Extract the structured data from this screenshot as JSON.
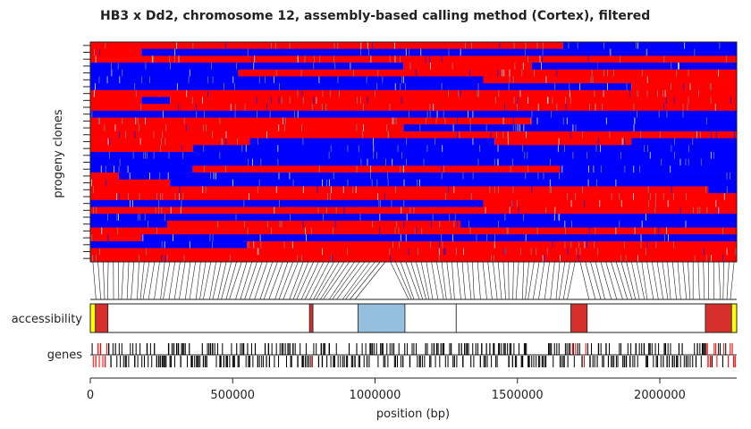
{
  "chart_data": {
    "type": "heatmap",
    "title": "HB3 x Dd2, chromosome 12, assembly-based calling method (Cortex), filtered",
    "ylabel": "progeny clones",
    "xlabel": "position (bp)",
    "xlim": [
      0,
      2270000
    ],
    "xticks": [
      0,
      500000,
      1000000,
      1500000,
      2000000
    ],
    "xtick_labels": [
      "0",
      "500000",
      "1000000",
      "1500000",
      "2000000"
    ],
    "track_labels": {
      "accessibility": "accessibility",
      "genes": "genes"
    },
    "colors": {
      "parent_a": "#ff0000",
      "parent_b": "#0000ff",
      "missing": "#888888",
      "core": "#ffffff",
      "subtelomeric_hypervariable": "#d7302c",
      "internal_hypervariable": "#94bfdd",
      "telomere": "#ffff00",
      "gene": "#000000",
      "gene_highlight": "#ff0000"
    },
    "accessibility_regions": [
      {
        "start": 0,
        "end": 18000,
        "class": "telomere"
      },
      {
        "start": 18000,
        "end": 62000,
        "class": "subtelomeric_hypervariable"
      },
      {
        "start": 62000,
        "end": 770000,
        "class": "core"
      },
      {
        "start": 770000,
        "end": 782000,
        "class": "subtelomeric_hypervariable"
      },
      {
        "start": 782000,
        "end": 940000,
        "class": "core"
      },
      {
        "start": 940000,
        "end": 1105000,
        "class": "internal_hypervariable"
      },
      {
        "start": 1105000,
        "end": 1285000,
        "class": "core"
      },
      {
        "start": 1285000,
        "end": 1688000,
        "class": "core"
      },
      {
        "start": 1688000,
        "end": 1745000,
        "class": "subtelomeric_hypervariable"
      },
      {
        "start": 1745000,
        "end": 2160000,
        "class": "core"
      },
      {
        "start": 2160000,
        "end": 2252000,
        "class": "subtelomeric_hypervariable"
      },
      {
        "start": 2252000,
        "end": 2270000,
        "class": "telomere"
      }
    ],
    "variant_gaps": [
      [
        1070000,
        1095000
      ],
      [
        1715000,
        1740000
      ]
    ],
    "progeny": [
      {
        "segments": [
          {
            "start": 0,
            "end": 1660000,
            "parent": "parent_a"
          },
          {
            "start": 1660000,
            "end": 2270000,
            "parent": "parent_b"
          }
        ]
      },
      {
        "segments": [
          {
            "start": 0,
            "end": 180000,
            "parent": "parent_a"
          },
          {
            "start": 180000,
            "end": 2270000,
            "parent": "parent_b"
          }
        ]
      },
      {
        "segments": [
          {
            "start": 0,
            "end": 2270000,
            "parent": "parent_a"
          }
        ]
      },
      {
        "segments": [
          {
            "start": 0,
            "end": 1100000,
            "parent": "parent_b"
          },
          {
            "start": 1100000,
            "end": 1550000,
            "parent": "parent_a"
          },
          {
            "start": 1550000,
            "end": 2270000,
            "parent": "parent_b"
          }
        ]
      },
      {
        "segments": [
          {
            "start": 0,
            "end": 520000,
            "parent": "parent_b"
          },
          {
            "start": 520000,
            "end": 2270000,
            "parent": "parent_a"
          }
        ]
      },
      {
        "segments": [
          {
            "start": 0,
            "end": 1380000,
            "parent": "parent_b"
          },
          {
            "start": 1380000,
            "end": 2270000,
            "parent": "parent_a"
          }
        ]
      },
      {
        "segments": [
          {
            "start": 0,
            "end": 1900000,
            "parent": "parent_b"
          },
          {
            "start": 1900000,
            "end": 2270000,
            "parent": "parent_a"
          }
        ]
      },
      {
        "segments": [
          {
            "start": 0,
            "end": 2270000,
            "parent": "parent_a"
          }
        ]
      },
      {
        "segments": [
          {
            "start": 0,
            "end": 180000,
            "parent": "parent_a"
          },
          {
            "start": 180000,
            "end": 280000,
            "parent": "parent_b"
          },
          {
            "start": 280000,
            "end": 2270000,
            "parent": "parent_a"
          }
        ]
      },
      {
        "segments": [
          {
            "start": 0,
            "end": 2270000,
            "parent": "parent_a"
          }
        ]
      },
      {
        "segments": [
          {
            "start": 0,
            "end": 2270000,
            "parent": "parent_b"
          }
        ]
      },
      {
        "segments": [
          {
            "start": 0,
            "end": 1550000,
            "parent": "parent_a"
          },
          {
            "start": 1550000,
            "end": 2270000,
            "parent": "parent_b"
          }
        ]
      },
      {
        "segments": [
          {
            "start": 0,
            "end": 1100000,
            "parent": "parent_a"
          },
          {
            "start": 1100000,
            "end": 2270000,
            "parent": "parent_b"
          }
        ]
      },
      {
        "segments": [
          {
            "start": 0,
            "end": 2270000,
            "parent": "parent_a"
          }
        ]
      },
      {
        "segments": [
          {
            "start": 0,
            "end": 560000,
            "parent": "parent_a"
          },
          {
            "start": 560000,
            "end": 1420000,
            "parent": "parent_b"
          },
          {
            "start": 1420000,
            "end": 1900000,
            "parent": "parent_a"
          },
          {
            "start": 1900000,
            "end": 2270000,
            "parent": "parent_b"
          }
        ]
      },
      {
        "segments": [
          {
            "start": 0,
            "end": 360000,
            "parent": "parent_a"
          },
          {
            "start": 360000,
            "end": 2270000,
            "parent": "parent_b"
          }
        ]
      },
      {
        "segments": [
          {
            "start": 0,
            "end": 2270000,
            "parent": "parent_b"
          }
        ]
      },
      {
        "segments": [
          {
            "start": 0,
            "end": 2270000,
            "parent": "parent_b"
          }
        ]
      },
      {
        "segments": [
          {
            "start": 0,
            "end": 360000,
            "parent": "parent_b"
          },
          {
            "start": 360000,
            "end": 1650000,
            "parent": "parent_a"
          },
          {
            "start": 1650000,
            "end": 2270000,
            "parent": "parent_b"
          }
        ]
      },
      {
        "segments": [
          {
            "start": 0,
            "end": 100000,
            "parent": "parent_a"
          },
          {
            "start": 100000,
            "end": 2270000,
            "parent": "parent_b"
          }
        ]
      },
      {
        "segments": [
          {
            "start": 0,
            "end": 280000,
            "parent": "parent_a"
          },
          {
            "start": 280000,
            "end": 2270000,
            "parent": "parent_b"
          }
        ]
      },
      {
        "segments": [
          {
            "start": 0,
            "end": 2170000,
            "parent": "parent_a"
          },
          {
            "start": 2170000,
            "end": 2270000,
            "parent": "parent_b"
          }
        ]
      },
      {
        "segments": [
          {
            "start": 0,
            "end": 2270000,
            "parent": "parent_a"
          }
        ]
      },
      {
        "segments": [
          {
            "start": 0,
            "end": 1380000,
            "parent": "parent_b"
          },
          {
            "start": 1380000,
            "end": 2270000,
            "parent": "parent_a"
          }
        ]
      },
      {
        "segments": [
          {
            "start": 0,
            "end": 2270000,
            "parent": "parent_a"
          }
        ]
      },
      {
        "segments": [
          {
            "start": 0,
            "end": 2270000,
            "parent": "parent_b"
          }
        ]
      },
      {
        "segments": [
          {
            "start": 0,
            "end": 270000,
            "parent": "parent_b"
          },
          {
            "start": 270000,
            "end": 1300000,
            "parent": "parent_a"
          },
          {
            "start": 1300000,
            "end": 2270000,
            "parent": "parent_b"
          }
        ]
      },
      {
        "segments": [
          {
            "start": 0,
            "end": 2270000,
            "parent": "parent_a"
          }
        ]
      },
      {
        "segments": [
          {
            "start": 0,
            "end": 180000,
            "parent": "parent_a"
          },
          {
            "start": 180000,
            "end": 2270000,
            "parent": "parent_b"
          }
        ]
      },
      {
        "segments": [
          {
            "start": 0,
            "end": 550000,
            "parent": "parent_b"
          },
          {
            "start": 550000,
            "end": 2270000,
            "parent": "parent_a"
          }
        ]
      },
      {
        "segments": [
          {
            "start": 0,
            "end": 2270000,
            "parent": "parent_a"
          }
        ]
      },
      {
        "segments": [
          {
            "start": 0,
            "end": 2270000,
            "parent": "parent_a"
          }
        ]
      }
    ]
  }
}
